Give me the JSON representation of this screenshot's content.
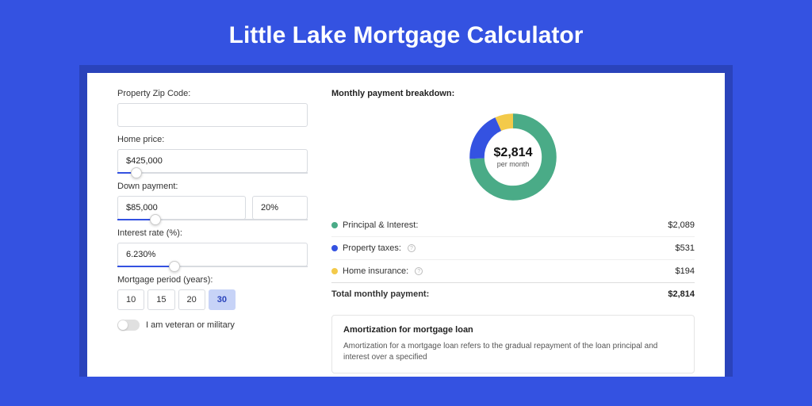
{
  "page": {
    "title": "Little Lake Mortgage Calculator",
    "background_color": "#3452e1",
    "card_shadow_color": "#2a43bb",
    "card_background": "#ffffff"
  },
  "form": {
    "zip": {
      "label": "Property Zip Code:",
      "value": ""
    },
    "home_price": {
      "label": "Home price:",
      "value": "$425,000",
      "slider_percent": 10
    },
    "down_payment": {
      "label": "Down payment:",
      "value": "$85,000",
      "percent": "20%",
      "slider_percent": 20
    },
    "interest_rate": {
      "label": "Interest rate (%):",
      "value": "6.230%",
      "slider_percent": 30
    },
    "mortgage_period": {
      "label": "Mortgage period (years):",
      "options": [
        "10",
        "15",
        "20",
        "30"
      ],
      "active_index": 3
    },
    "veteran": {
      "label": "I am veteran or military",
      "checked": false
    }
  },
  "breakdown": {
    "title": "Monthly payment breakdown:",
    "donut": {
      "amount": "$2,814",
      "sub": "per month",
      "segments": [
        {
          "label": "Principal & Interest:",
          "value": "$2,089",
          "color": "#4aab87",
          "arc_percent": 74.2
        },
        {
          "label": "Property taxes:",
          "value": "$531",
          "color": "#3452e1",
          "arc_percent": 18.9,
          "info": true
        },
        {
          "label": "Home insurance:",
          "value": "$194",
          "color": "#f3ca4a",
          "arc_percent": 6.9,
          "info": true
        }
      ]
    },
    "total": {
      "label": "Total monthly payment:",
      "value": "$2,814"
    }
  },
  "amortization": {
    "title": "Amortization for mortgage loan",
    "text": "Amortization for a mortgage loan refers to the gradual repayment of the loan principal and interest over a specified"
  }
}
